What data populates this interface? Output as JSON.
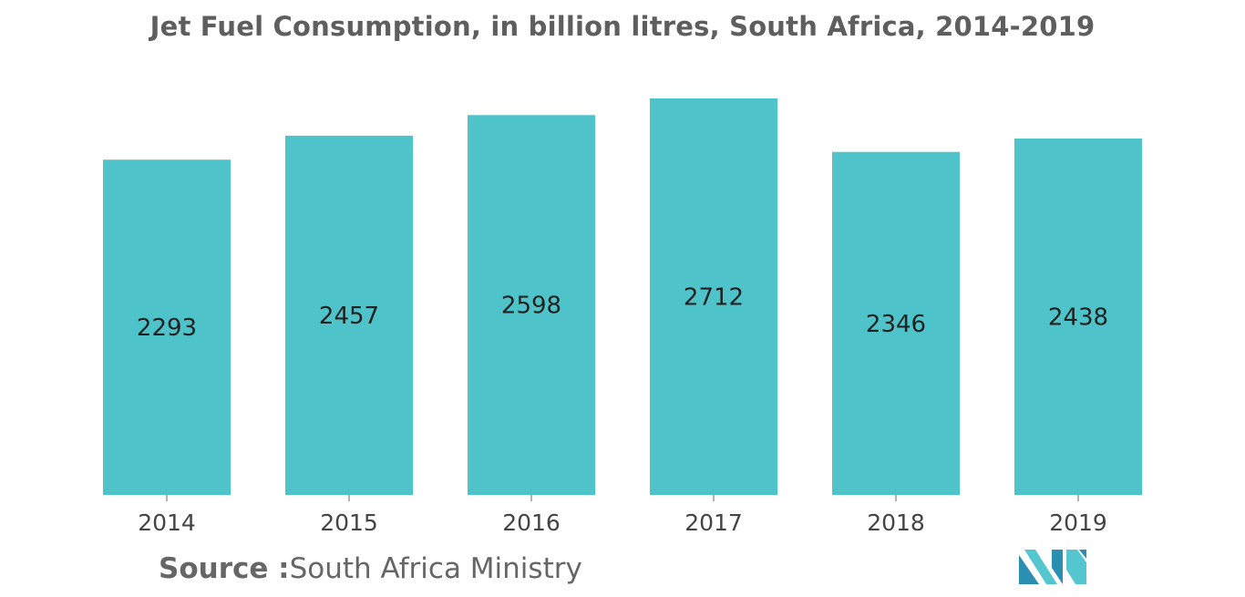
{
  "title": "Jet Fuel Consumption, in billion litres, South Africa, 2014-2019",
  "source": {
    "prefix": "Source :",
    "text": "South Africa Ministry"
  },
  "logo": {
    "icon": "mordor-intelligence-logo-icon",
    "colors": [
      "#2a8fb0",
      "#53c6cf"
    ]
  },
  "chart_data": {
    "type": "bar",
    "title": "Jet Fuel Consumption, in billion litres, South Africa, 2014-2019",
    "categories": [
      "2014",
      "2015",
      "2016",
      "2017",
      "2018",
      "2019"
    ],
    "values": [
      2293,
      2457,
      2598,
      2712,
      2346,
      2438
    ],
    "data_labels": [
      "2293",
      "2457",
      "2598",
      "2712",
      "2346",
      "2438"
    ],
    "xlabel": "",
    "ylabel": "",
    "ylim": [
      0,
      2712
    ],
    "grid": false,
    "legend": "none",
    "bar_color": "#4fc3ca"
  }
}
